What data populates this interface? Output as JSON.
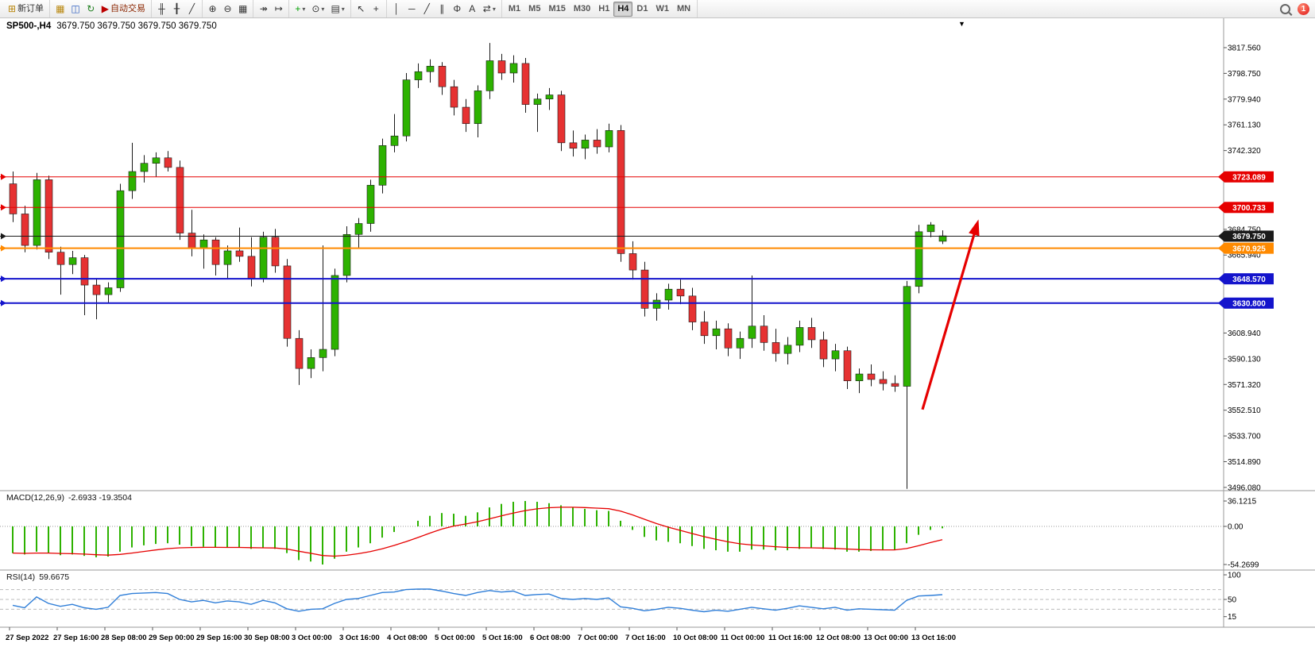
{
  "toolbar": {
    "notification_count": "1",
    "groups": [
      {
        "name": "order-group",
        "items": [
          {
            "name": "new-order-button",
            "label": "新订单",
            "glyph": "⊞",
            "glyph_color": "#b8860b"
          }
        ]
      },
      {
        "name": "window-group",
        "items": [
          {
            "name": "new-chart-icon",
            "glyph": "▦",
            "glyph_color": "#b8860b"
          },
          {
            "name": "profiles-icon",
            "glyph": "◫",
            "glyph_color": "#3060c0"
          },
          {
            "name": "refresh-icon",
            "glyph": "↻",
            "glyph_color": "#208020"
          },
          {
            "name": "autotrading-button",
            "label": "自动交易",
            "glyph": "▶",
            "glyph_color": "#bb0000",
            "label_color": "#8b2500"
          }
        ]
      },
      {
        "name": "chart-type-group",
        "items": [
          {
            "name": "bar-chart-icon",
            "glyph": "╫"
          },
          {
            "name": "candlestick-chart-icon",
            "glyph": "╂"
          },
          {
            "name": "line-chart-icon",
            "glyph": "╱"
          }
        ]
      },
      {
        "name": "zoom-group",
        "items": [
          {
            "name": "zoom-in-icon",
            "glyph": "⊕"
          },
          {
            "name": "zoom-out-icon",
            "glyph": "⊖"
          },
          {
            "name": "tile-windows-icon",
            "glyph": "▦"
          }
        ]
      },
      {
        "name": "scroll-group",
        "items": [
          {
            "name": "auto-scroll-icon",
            "glyph": "↠"
          },
          {
            "name": "chart-shift-icon",
            "glyph": "↦"
          }
        ]
      },
      {
        "name": "insert-group",
        "items": [
          {
            "name": "add-indicator-icon",
            "glyph": "+",
            "glyph_color": "#00a000",
            "caret": true
          },
          {
            "name": "period-icon",
            "glyph": "⊙",
            "caret": true
          },
          {
            "name": "template-icon",
            "glyph": "▤",
            "caret": true
          }
        ]
      },
      {
        "name": "cursor-group",
        "items": [
          {
            "name": "cursor-icon",
            "glyph": "↖"
          },
          {
            "name": "crosshair-icon",
            "glyph": "+"
          }
        ]
      },
      {
        "name": "draw-group",
        "items": [
          {
            "name": "vertical-line-icon",
            "glyph": "│"
          },
          {
            "name": "horizontal-line-icon",
            "glyph": "─"
          },
          {
            "name": "trendline-icon",
            "glyph": "╱"
          },
          {
            "name": "channel-icon",
            "glyph": "∥"
          },
          {
            "name": "fibonacci-icon",
            "glyph": "Φ"
          },
          {
            "name": "text-icon",
            "glyph": "A"
          },
          {
            "name": "arrows-icon",
            "glyph": "⇄",
            "caret": true
          }
        ]
      },
      {
        "name": "timeframe-group",
        "items": [
          {
            "name": "tf-m1",
            "label": "M1"
          },
          {
            "name": "tf-m5",
            "label": "M5"
          },
          {
            "name": "tf-m15",
            "label": "M15"
          },
          {
            "name": "tf-m30",
            "label": "M30"
          },
          {
            "name": "tf-h1",
            "label": "H1"
          },
          {
            "name": "tf-h4",
            "label": "H4",
            "active": true
          },
          {
            "name": "tf-d1",
            "label": "D1"
          },
          {
            "name": "tf-w1",
            "label": "W1"
          },
          {
            "name": "tf-mn",
            "label": "MN"
          }
        ]
      }
    ]
  },
  "chart": {
    "symbol_period": "SP500-,H4",
    "quotes": "3679.750 3679.750 3679.750 3679.750"
  },
  "icons": {
    "window_menu": "▼"
  },
  "indicators": {
    "macd": {
      "title": "MACD(12,26,9)",
      "values": "-2.6933 -19.3504"
    },
    "rsi": {
      "title": "RSI(14)",
      "value": "59.6675"
    }
  },
  "colors": {
    "candle_up": "#2db200",
    "candle_down": "#e63232",
    "wick": "#1a1a1a",
    "macd_bar": "#2db200",
    "macd_signal": "#e60000",
    "rsi_line": "#2f7ed8",
    "axis_text": "#000000",
    "separator": "#9a9a9a",
    "level_line": "#bbbbbb",
    "arrow": "#e60000",
    "tag_red": "#e60000",
    "tag_black": "#1a1a1a",
    "tag_orange": "#ff8a00",
    "tag_blue": "#1414cc"
  },
  "chart_data": {
    "type": "candlestick",
    "symbol": "SP500-",
    "timeframe": "H4",
    "ylim": [
      3495.51,
      3817.56
    ],
    "current_price": 3679.75,
    "candles": [
      [
        3718,
        3727,
        3690,
        3696
      ],
      [
        3696,
        3702,
        3668,
        3673
      ],
      [
        3673,
        3726,
        3670,
        3721
      ],
      [
        3721,
        3724,
        3663,
        3668
      ],
      [
        3668,
        3672,
        3637,
        3659
      ],
      [
        3659,
        3669,
        3652,
        3664
      ],
      [
        3664,
        3666,
        3622,
        3644
      ],
      [
        3644,
        3649,
        3619,
        3637
      ],
      [
        3637,
        3646,
        3631,
        3642
      ],
      [
        3642,
        3718,
        3639,
        3713
      ],
      [
        3713,
        3748,
        3707,
        3727
      ],
      [
        3727,
        3739,
        3719,
        3733
      ],
      [
        3733,
        3741,
        3723,
        3737
      ],
      [
        3737,
        3742,
        3727,
        3730
      ],
      [
        3730,
        3735,
        3677,
        3682
      ],
      [
        3682,
        3699,
        3665,
        3671
      ],
      [
        3671,
        3681,
        3656,
        3677
      ],
      [
        3677,
        3679,
        3651,
        3659
      ],
      [
        3659,
        3673,
        3649,
        3669
      ],
      [
        3669,
        3686,
        3661,
        3665
      ],
      [
        3665,
        3679,
        3643,
        3649
      ],
      [
        3649,
        3683,
        3646,
        3679
      ],
      [
        3679,
        3685,
        3653,
        3658
      ],
      [
        3658,
        3663,
        3599,
        3605
      ],
      [
        3605,
        3611,
        3571,
        3583
      ],
      [
        3583,
        3597,
        3576,
        3591
      ],
      [
        3591,
        3673,
        3581,
        3597
      ],
      [
        3597,
        3656,
        3592,
        3651
      ],
      [
        3651,
        3687,
        3646,
        3681
      ],
      [
        3681,
        3693,
        3671,
        3689
      ],
      [
        3689,
        3721,
        3683,
        3717
      ],
      [
        3717,
        3751,
        3711,
        3746
      ],
      [
        3746,
        3769,
        3741,
        3753
      ],
      [
        3753,
        3799,
        3749,
        3794
      ],
      [
        3794,
        3806,
        3788,
        3800
      ],
      [
        3800,
        3809,
        3792,
        3804
      ],
      [
        3804,
        3807,
        3783,
        3789
      ],
      [
        3789,
        3794,
        3768,
        3774
      ],
      [
        3774,
        3780,
        3756,
        3762
      ],
      [
        3762,
        3790,
        3752,
        3786
      ],
      [
        3786,
        3821,
        3780,
        3808
      ],
      [
        3808,
        3813,
        3794,
        3799
      ],
      [
        3799,
        3812,
        3792,
        3806
      ],
      [
        3806,
        3810,
        3770,
        3776
      ],
      [
        3776,
        3784,
        3756,
        3780
      ],
      [
        3780,
        3788,
        3772,
        3783
      ],
      [
        3783,
        3786,
        3742,
        3748
      ],
      [
        3748,
        3757,
        3738,
        3744
      ],
      [
        3744,
        3754,
        3736,
        3750
      ],
      [
        3750,
        3758,
        3740,
        3745
      ],
      [
        3745,
        3762,
        3741,
        3757
      ],
      [
        3757,
        3761,
        3661,
        3667
      ],
      [
        3667,
        3676,
        3648,
        3655
      ],
      [
        3655,
        3661,
        3621,
        3627
      ],
      [
        3627,
        3638,
        3618,
        3633
      ],
      [
        3633,
        3645,
        3626,
        3641
      ],
      [
        3641,
        3648,
        3630,
        3636
      ],
      [
        3636,
        3642,
        3611,
        3617
      ],
      [
        3617,
        3625,
        3601,
        3607
      ],
      [
        3607,
        3618,
        3597,
        3612
      ],
      [
        3612,
        3616,
        3592,
        3598
      ],
      [
        3598,
        3610,
        3590,
        3605
      ],
      [
        3605,
        3651,
        3598,
        3614
      ],
      [
        3614,
        3622,
        3596,
        3602
      ],
      [
        3602,
        3612,
        3588,
        3594
      ],
      [
        3594,
        3606,
        3586,
        3600
      ],
      [
        3600,
        3618,
        3595,
        3613
      ],
      [
        3613,
        3620,
        3598,
        3604
      ],
      [
        3604,
        3610,
        3584,
        3590
      ],
      [
        3590,
        3601,
        3581,
        3596
      ],
      [
        3596,
        3599,
        3568,
        3574
      ],
      [
        3574,
        3583,
        3565,
        3579
      ],
      [
        3579,
        3586,
        3570,
        3575
      ],
      [
        3575,
        3581,
        3567,
        3572
      ],
      [
        3572,
        3578,
        3566,
        3570
      ],
      [
        3570,
        3647,
        3495,
        3643
      ],
      [
        3643,
        3688,
        3638,
        3683
      ],
      [
        3683,
        3690,
        3679,
        3688
      ],
      [
        3676,
        3684,
        3674,
        3680
      ]
    ],
    "macd_histogram": [
      -38,
      -40,
      -36,
      -38,
      -41,
      -40,
      -42,
      -44,
      -43,
      -36,
      -30,
      -27,
      -25,
      -24,
      -26,
      -28,
      -29,
      -30,
      -30,
      -30,
      -32,
      -31,
      -32,
      -38,
      -48,
      -50,
      -54.27,
      -46,
      -36,
      -30,
      -24,
      -16,
      -8,
      0,
      8,
      15,
      19,
      18,
      15,
      20,
      27,
      32,
      35,
      36.12,
      35,
      33,
      30,
      27,
      25,
      23,
      22,
      8,
      -5,
      -15,
      -20,
      -22,
      -24,
      -28,
      -32,
      -34,
      -36,
      -36,
      -33,
      -33,
      -34,
      -34,
      -32,
      -31,
      -32,
      -33,
      -36,
      -36,
      -35,
      -34,
      -33,
      -24,
      -12,
      -5,
      -2.6933
    ],
    "rsi": [
      38,
      33,
      55,
      42,
      36,
      40,
      33,
      30,
      34,
      58,
      62,
      63,
      64,
      62,
      50,
      45,
      48,
      43,
      47,
      45,
      40,
      48,
      43,
      31,
      26,
      30,
      31,
      42,
      50,
      52,
      58,
      64,
      65,
      70,
      71,
      71,
      67,
      62,
      58,
      64,
      68,
      65,
      67,
      58,
      60,
      61,
      52,
      50,
      52,
      50,
      53,
      35,
      32,
      27,
      30,
      34,
      32,
      28,
      25,
      28,
      26,
      30,
      34,
      31,
      28,
      32,
      37,
      34,
      31,
      34,
      28,
      31,
      30,
      29,
      28,
      48,
      57,
      58,
      59.6675
    ],
    "hlines": [
      {
        "price": 3723.089,
        "label": "3723.089",
        "color": "#e60000",
        "width": 1
      },
      {
        "price": 3700.733,
        "label": "3700.733",
        "color": "#e60000",
        "width": 1
      },
      {
        "price": 3679.75,
        "label": "3679.750",
        "color": "#1a1a1a",
        "width": 1
      },
      {
        "price": 3670.925,
        "label": "3670.925",
        "color": "#ff8a00",
        "width": 2
      },
      {
        "price": 3648.57,
        "label": "3648.570",
        "color": "#1414cc",
        "width": 2
      },
      {
        "price": 3630.8,
        "label": "3630.800",
        "color": "#1414cc",
        "width": 2
      }
    ],
    "price_axis": [
      {
        "text": "3817.560",
        "value": 3817.56
      },
      {
        "text": "3798.750",
        "value": 3798.75
      },
      {
        "text": "3779.940",
        "value": 3779.94
      },
      {
        "text": "3761.130",
        "value": 3761.13
      },
      {
        "text": "3742.320",
        "value": 3742.32
      },
      {
        "text": "3684.750",
        "value": 3684.75
      },
      {
        "text": "3665.940",
        "value": 3665.94
      },
      {
        "text": "3608.940",
        "value": 3608.94
      },
      {
        "text": "3590.130",
        "value": 3590.13
      },
      {
        "text": "3571.320",
        "value": 3571.32
      },
      {
        "text": "3552.510",
        "value": 3552.51
      },
      {
        "text": "3533.700",
        "value": 3533.7
      },
      {
        "text": "3514.890",
        "value": 3514.89
      },
      {
        "text": "3496.080",
        "value": 3496.08
      }
    ],
    "macd_axis": [
      {
        "text": "36.1215",
        "value": 36.1215
      },
      {
        "text": "0.00",
        "value": 0
      },
      {
        "text": "-54.2699",
        "value": -54.2699
      }
    ],
    "rsi_axis": [
      {
        "text": "100",
        "value": 100
      },
      {
        "text": "50",
        "value": 50
      },
      {
        "text": "15",
        "value": 15
      }
    ],
    "rsi_levels": [
      70,
      50,
      30
    ],
    "time_axis": [
      {
        "text": "27 Sep 2022",
        "bar": 0
      },
      {
        "text": "27 Sep 16:00",
        "bar": 4
      },
      {
        "text": "28 Sep 08:00",
        "bar": 8
      },
      {
        "text": "29 Sep 00:00",
        "bar": 12
      },
      {
        "text": "29 Sep 16:00",
        "bar": 16
      },
      {
        "text": "30 Sep 08:00",
        "bar": 20
      },
      {
        "text": "3 Oct 00:00",
        "bar": 24
      },
      {
        "text": "3 Oct 16:00",
        "bar": 28
      },
      {
        "text": "4 Oct 08:00",
        "bar": 32
      },
      {
        "text": "5 Oct 00:00",
        "bar": 36
      },
      {
        "text": "5 Oct 16:00",
        "bar": 40
      },
      {
        "text": "6 Oct 08:00",
        "bar": 44
      },
      {
        "text": "7 Oct 00:00",
        "bar": 48
      },
      {
        "text": "7 Oct 16:00",
        "bar": 52
      },
      {
        "text": "10 Oct 08:00",
        "bar": 56
      },
      {
        "text": "11 Oct 00:00",
        "bar": 60
      },
      {
        "text": "11 Oct 16:00",
        "bar": 64
      },
      {
        "text": "12 Oct 08:00",
        "bar": 68
      },
      {
        "text": "13 Oct 00:00",
        "bar": 72
      },
      {
        "text": "13 Oct 16:00",
        "bar": 76
      }
    ],
    "annotation_arrow": {
      "from_bar": 76.6,
      "from_price": 3553,
      "to_bar": 81.3,
      "to_price": 3692,
      "color": "#e60000"
    }
  }
}
